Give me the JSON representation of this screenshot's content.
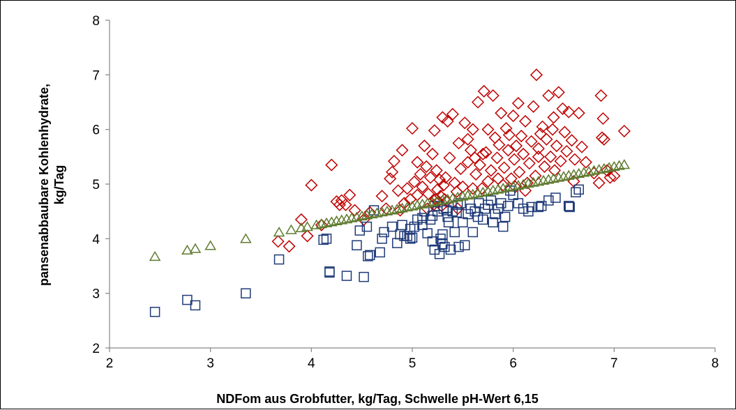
{
  "chart_data": {
    "type": "scatter",
    "xlabel": "NDFom aus Grobfutter, kg/Tag, Schwelle pH-Wert 6,15",
    "ylabel_line1": "pansenabbaubare Kohlenhydrate,",
    "ylabel_line2": "kg/Tag",
    "xlim": [
      2,
      8
    ],
    "ylim": [
      2,
      8
    ],
    "x_ticks": [
      2,
      3,
      4,
      5,
      6,
      7,
      8
    ],
    "y_ticks": [
      2,
      3,
      4,
      5,
      6,
      7,
      8
    ],
    "grid": false,
    "legend": "none",
    "series": [
      {
        "marker": "diamond",
        "color": "#C00000",
        "points": [
          [
            3.67,
            3.95
          ],
          [
            3.78,
            3.86
          ],
          [
            3.9,
            4.35
          ],
          [
            3.96,
            4.05
          ],
          [
            4.0,
            4.98
          ],
          [
            4.1,
            4.25
          ],
          [
            4.2,
            5.35
          ],
          [
            4.25,
            4.68
          ],
          [
            4.28,
            4.62
          ],
          [
            4.3,
            4.7
          ],
          [
            4.34,
            4.62
          ],
          [
            4.38,
            4.8
          ],
          [
            4.43,
            4.52
          ],
          [
            4.52,
            4.35
          ],
          [
            4.58,
            4.48
          ],
          [
            4.7,
            4.78
          ],
          [
            4.74,
            4.55
          ],
          [
            4.78,
            5.1
          ],
          [
            4.8,
            5.22
          ],
          [
            4.82,
            5.42
          ],
          [
            4.86,
            4.88
          ],
          [
            4.9,
            5.62
          ],
          [
            4.92,
            4.65
          ],
          [
            4.95,
            4.92
          ],
          [
            4.98,
            4.72
          ],
          [
            5.0,
            6.02
          ],
          [
            5.02,
            5.04
          ],
          [
            5.05,
            5.4
          ],
          [
            5.08,
            5.18
          ],
          [
            5.1,
            4.95
          ],
          [
            5.12,
            5.7
          ],
          [
            5.14,
            5.32
          ],
          [
            5.16,
            4.82
          ],
          [
            5.18,
            5.12
          ],
          [
            5.2,
            5.55
          ],
          [
            5.21,
            4.62
          ],
          [
            5.22,
            5.98
          ],
          [
            5.23,
            4.72
          ],
          [
            5.24,
            5.25
          ],
          [
            5.25,
            4.9
          ],
          [
            5.26,
            4.68
          ],
          [
            5.27,
            5.08
          ],
          [
            5.28,
            4.78
          ],
          [
            5.29,
            4.6
          ],
          [
            5.3,
            6.22
          ],
          [
            5.31,
            4.98
          ],
          [
            5.32,
            4.72
          ],
          [
            5.33,
            5.12
          ],
          [
            5.35,
            6.15
          ],
          [
            5.37,
            5.48
          ],
          [
            5.4,
            6.28
          ],
          [
            5.42,
            5.02
          ],
          [
            5.44,
            4.86
          ],
          [
            5.46,
            5.75
          ],
          [
            5.48,
            5.28
          ],
          [
            5.5,
            4.95
          ],
          [
            5.52,
            6.12
          ],
          [
            5.55,
            5.4
          ],
          [
            5.58,
            5.62
          ],
          [
            5.6,
            6.0
          ],
          [
            5.62,
            5.48
          ],
          [
            5.63,
            5.18
          ],
          [
            5.65,
            6.5
          ],
          [
            5.67,
            5.35
          ],
          [
            5.69,
            4.92
          ],
          [
            5.71,
            6.7
          ],
          [
            5.73,
            5.58
          ],
          [
            5.75,
            5.05
          ],
          [
            5.78,
            5.25
          ],
          [
            5.8,
            6.62
          ],
          [
            5.82,
            5.85
          ],
          [
            5.84,
            5.48
          ],
          [
            5.86,
            5.72
          ],
          [
            5.88,
            6.3
          ],
          [
            5.9,
            4.98
          ],
          [
            5.91,
            5.3
          ],
          [
            5.93,
            6.02
          ],
          [
            5.95,
            5.62
          ],
          [
            5.96,
            5.9
          ],
          [
            5.98,
            5.1
          ],
          [
            6.0,
            6.25
          ],
          [
            6.01,
            5.45
          ],
          [
            6.03,
            5.7
          ],
          [
            6.05,
            6.48
          ],
          [
            6.06,
            5.22
          ],
          [
            6.08,
            5.88
          ],
          [
            6.1,
            5.55
          ],
          [
            6.12,
            6.15
          ],
          [
            6.14,
            5.02
          ],
          [
            6.16,
            5.38
          ],
          [
            6.18,
            5.78
          ],
          [
            6.2,
            6.42
          ],
          [
            6.22,
            5.15
          ],
          [
            6.23,
            7.0
          ],
          [
            6.25,
            5.65
          ],
          [
            6.27,
            5.92
          ],
          [
            6.29,
            6.05
          ],
          [
            6.31,
            5.32
          ],
          [
            6.33,
            5.82
          ],
          [
            6.35,
            6.62
          ],
          [
            6.37,
            5.5
          ],
          [
            6.39,
            6.0
          ],
          [
            6.41,
            5.25
          ],
          [
            6.43,
            5.7
          ],
          [
            6.45,
            6.68
          ],
          [
            6.47,
            5.42
          ],
          [
            6.49,
            6.38
          ],
          [
            6.51,
            5.95
          ],
          [
            6.53,
            5.6
          ],
          [
            6.55,
            6.32
          ],
          [
            6.58,
            5.8
          ],
          [
            6.61,
            5.45
          ],
          [
            6.65,
            6.3
          ],
          [
            6.68,
            5.68
          ],
          [
            6.72,
            5.4
          ],
          [
            6.8,
            5.2
          ],
          [
            6.85,
            5.02
          ],
          [
            6.87,
            6.62
          ],
          [
            6.88,
            5.85
          ],
          [
            6.89,
            6.2
          ],
          [
            6.9,
            5.82
          ],
          [
            6.93,
            5.25
          ],
          [
            6.96,
            5.12
          ],
          [
            7.0,
            5.15
          ],
          [
            7.1,
            5.97
          ],
          [
            5.34,
            4.68
          ],
          [
            5.45,
            4.55
          ],
          [
            5.05,
            4.8
          ],
          [
            5.15,
            4.55
          ],
          [
            4.88,
            4.52
          ],
          [
            5.6,
            4.92
          ],
          [
            5.7,
            5.55
          ],
          [
            5.85,
            5.1
          ],
          [
            6.02,
            4.95
          ],
          [
            6.12,
            4.88
          ],
          [
            5.55,
            5.82
          ],
          [
            5.75,
            6.0
          ],
          [
            6.4,
            6.22
          ],
          [
            6.25,
            5.5
          ],
          [
            6.6,
            5.05
          ]
        ]
      },
      {
        "marker": "square",
        "color": "#1F3A78",
        "points": [
          [
            2.45,
            2.66
          ],
          [
            2.77,
            2.88
          ],
          [
            2.85,
            2.78
          ],
          [
            3.35,
            3.0
          ],
          [
            3.68,
            3.62
          ],
          [
            4.12,
            3.98
          ],
          [
            4.15,
            4.0
          ],
          [
            4.18,
            3.38
          ],
          [
            4.18,
            3.4
          ],
          [
            4.35,
            3.32
          ],
          [
            4.45,
            3.88
          ],
          [
            4.48,
            4.15
          ],
          [
            4.52,
            3.3
          ],
          [
            4.55,
            4.22
          ],
          [
            4.56,
            3.68
          ],
          [
            4.58,
            3.7
          ],
          [
            4.62,
            4.52
          ],
          [
            4.68,
            3.75
          ],
          [
            4.7,
            4.0
          ],
          [
            4.72,
            4.12
          ],
          [
            4.8,
            4.22
          ],
          [
            4.85,
            3.92
          ],
          [
            4.88,
            4.08
          ],
          [
            4.9,
            4.25
          ],
          [
            4.92,
            4.05
          ],
          [
            4.95,
            4.05
          ],
          [
            4.98,
            4.0
          ],
          [
            5.02,
            4.22
          ],
          [
            5.05,
            4.35
          ],
          [
            5.1,
            4.25
          ],
          [
            5.12,
            4.5
          ],
          [
            5.15,
            4.1
          ],
          [
            5.18,
            4.35
          ],
          [
            5.2,
            4.42
          ],
          [
            5.22,
            3.8
          ],
          [
            5.25,
            4.5
          ],
          [
            5.27,
            3.72
          ],
          [
            5.28,
            4.0
          ],
          [
            5.3,
            3.9
          ],
          [
            5.31,
            4.55
          ],
          [
            5.32,
            3.85
          ],
          [
            5.34,
            4.52
          ],
          [
            5.36,
            4.3
          ],
          [
            5.38,
            3.8
          ],
          [
            5.4,
            4.5
          ],
          [
            5.42,
            4.12
          ],
          [
            5.44,
            4.48
          ],
          [
            5.46,
            3.85
          ],
          [
            5.48,
            4.65
          ],
          [
            5.5,
            4.3
          ],
          [
            5.52,
            3.88
          ],
          [
            5.55,
            4.45
          ],
          [
            5.58,
            4.55
          ],
          [
            5.6,
            4.12
          ],
          [
            5.62,
            4.5
          ],
          [
            5.66,
            4.65
          ],
          [
            5.7,
            4.35
          ],
          [
            5.72,
            4.55
          ],
          [
            5.75,
            4.62
          ],
          [
            5.78,
            4.7
          ],
          [
            5.82,
            4.45
          ],
          [
            5.85,
            4.55
          ],
          [
            5.88,
            4.65
          ],
          [
            5.9,
            4.22
          ],
          [
            5.92,
            4.4
          ],
          [
            5.95,
            4.6
          ],
          [
            5.97,
            4.88
          ],
          [
            6.0,
            4.8
          ],
          [
            6.05,
            4.65
          ],
          [
            6.15,
            4.5
          ],
          [
            6.18,
            4.58
          ],
          [
            6.25,
            4.58
          ],
          [
            6.28,
            4.6
          ],
          [
            6.35,
            4.7
          ],
          [
            6.42,
            4.75
          ],
          [
            6.55,
            4.6
          ],
          [
            6.56,
            4.58
          ],
          [
            6.62,
            4.85
          ],
          [
            6.65,
            4.9
          ],
          [
            5.35,
            4.4
          ],
          [
            5.25,
            4.6
          ],
          [
            5.0,
            4.02
          ],
          [
            5.1,
            4.38
          ],
          [
            4.98,
            4.18
          ],
          [
            5.45,
            4.62
          ],
          [
            5.65,
            4.4
          ],
          [
            5.8,
            4.3
          ],
          [
            6.1,
            4.55
          ],
          [
            5.2,
            3.95
          ],
          [
            5.3,
            4.08
          ]
        ]
      },
      {
        "marker": "triangle",
        "color": "#5E7A2E",
        "trend": {
          "slope": 0.362,
          "intercept": 2.78
        },
        "x": [
          2.45,
          2.77,
          2.85,
          3.0,
          3.35,
          3.68,
          3.8,
          3.9,
          3.96,
          4.05,
          4.1,
          4.15,
          4.2,
          4.25,
          4.3,
          4.35,
          4.4,
          4.45,
          4.5,
          4.55,
          4.6,
          4.65,
          4.7,
          4.75,
          4.8,
          4.85,
          4.9,
          4.95,
          5.0,
          5.05,
          5.1,
          5.15,
          5.2,
          5.25,
          5.3,
          5.35,
          5.4,
          5.45,
          5.5,
          5.55,
          5.6,
          5.65,
          5.7,
          5.75,
          5.8,
          5.85,
          5.9,
          5.95,
          6.0,
          6.05,
          6.1,
          6.15,
          6.2,
          6.25,
          6.3,
          6.35,
          6.4,
          6.45,
          6.5,
          6.55,
          6.6,
          6.65,
          6.7,
          6.75,
          6.8,
          6.85,
          6.9,
          6.95,
          7.0,
          7.05,
          7.1
        ]
      }
    ]
  }
}
